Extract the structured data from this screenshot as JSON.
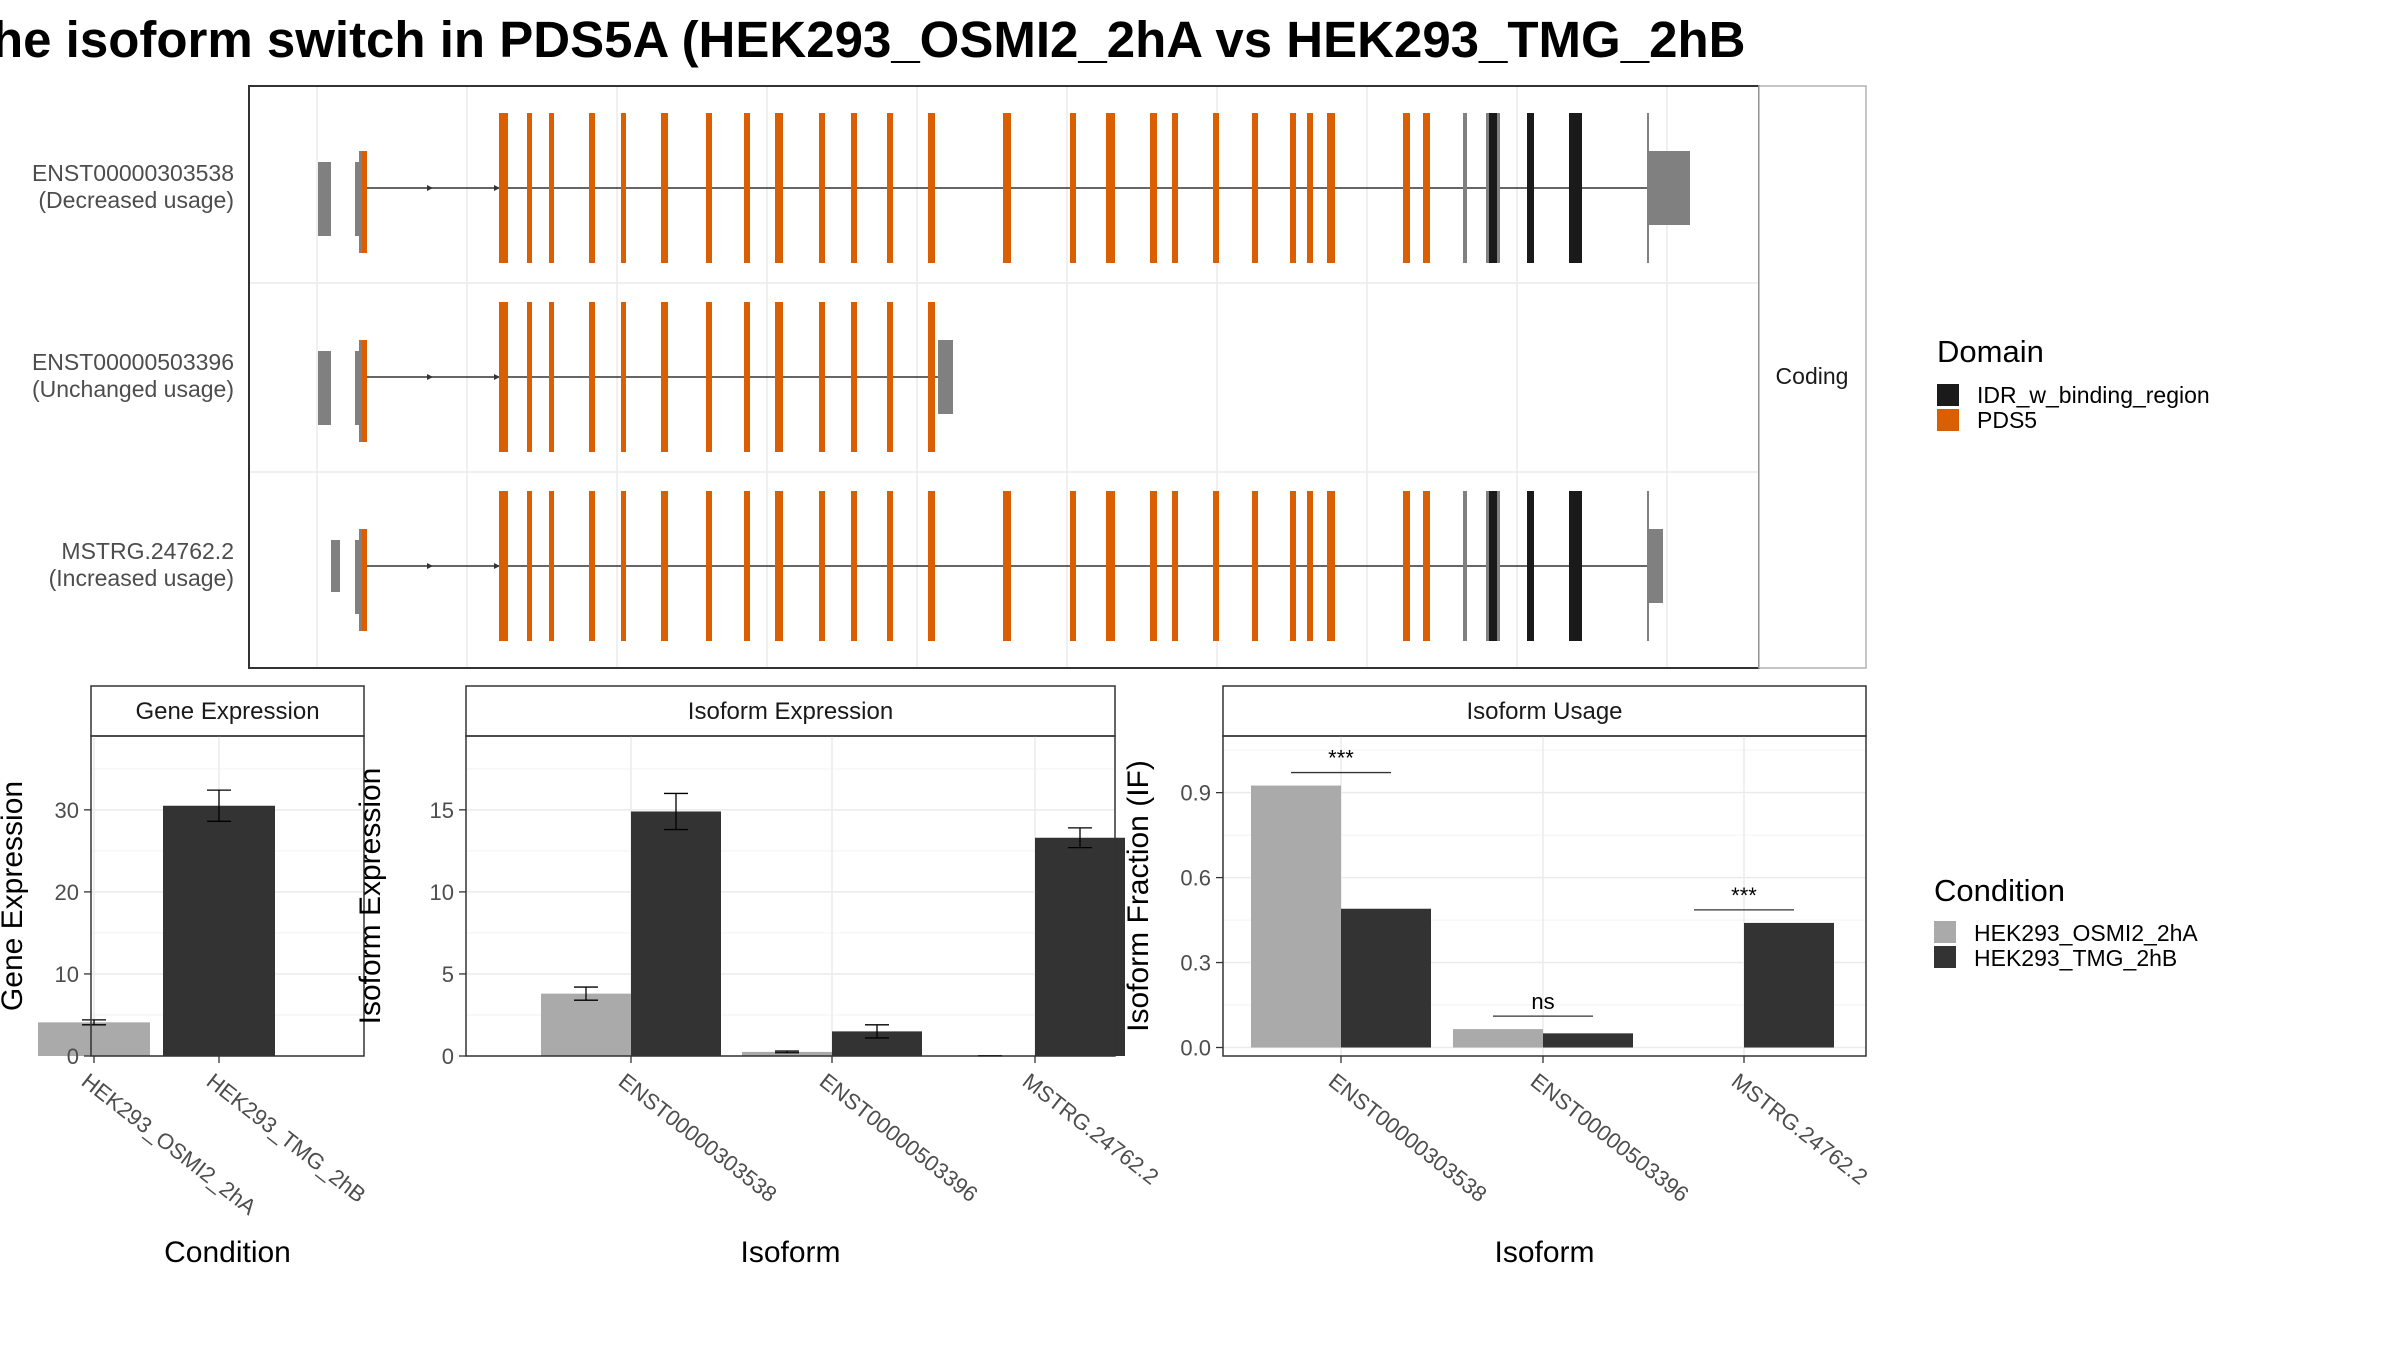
{
  "title": "he isoform switch in PDS5A (HEK293_OSMI2_2hA vs HEK293_TMG_2hB",
  "colors": {
    "PDS5": "#d95f02",
    "IDR_w_binding_region": "#1a1a1a",
    "noncoding": "#808080",
    "HEK293_OSMI2_2hA": "#aaaaaa",
    "HEK293_TMG_2hB": "#333333"
  },
  "structure": {
    "strip_label": "Coding",
    "transcripts": [
      {
        "id": "ENST00000303538",
        "usage": "(Decreased usage)",
        "type": "full"
      },
      {
        "id": "ENST00000503396",
        "usage": "(Unchanged usage)",
        "type": "truncated"
      },
      {
        "id": "MSTRG.24762.2",
        "usage": "(Increased usage)",
        "type": "full_alt"
      }
    ],
    "legend_title": "Domain",
    "legend_items": [
      "IDR_w_binding_region",
      "PDS5"
    ]
  },
  "chart_data": [
    {
      "type": "bar",
      "panel": "Gene Expression",
      "categories": [
        "HEK293_OSMI2_2hA",
        "HEK293_TMG_2hB"
      ],
      "values": [
        4.1,
        30.5
      ],
      "errors": [
        0.3,
        1.9
      ],
      "ylabel": "Gene Expression",
      "xlabel": "Condition",
      "ylim": [
        0,
        39
      ],
      "yticks": [
        0,
        10,
        20,
        30
      ]
    },
    {
      "type": "bar",
      "panel": "Isoform Expression",
      "categories": [
        "ENST00000303538",
        "ENST00000503396",
        "MSTRG.24762.2"
      ],
      "series": [
        {
          "name": "HEK293_OSMI2_2hA",
          "values": [
            3.8,
            0.25,
            0.0
          ],
          "errors": [
            0.4,
            0.05,
            0.02
          ]
        },
        {
          "name": "HEK293_TMG_2hB",
          "values": [
            14.9,
            1.5,
            13.3
          ],
          "errors": [
            1.1,
            0.4,
            0.6
          ]
        }
      ],
      "ylabel": "Isoform Expression",
      "xlabel": "Isoform",
      "ylim": [
        0,
        19.5
      ],
      "yticks": [
        0,
        5,
        10,
        15
      ]
    },
    {
      "type": "bar",
      "panel": "Isoform Usage",
      "categories": [
        "ENST00000303538",
        "ENST00000503396",
        "MSTRG.24762.2"
      ],
      "series": [
        {
          "name": "HEK293_OSMI2_2hA",
          "values": [
            0.925,
            0.065,
            0.0
          ]
        },
        {
          "name": "HEK293_TMG_2hB",
          "values": [
            0.49,
            0.05,
            0.44
          ]
        }
      ],
      "significance": [
        "***",
        "ns",
        "***"
      ],
      "ylabel": "Isoform Fraction (IF)",
      "xlabel": "Isoform",
      "ylim": [
        -0.03,
        1.1
      ],
      "yticks": [
        "0.0",
        "0.3",
        "0.6",
        "0.9"
      ]
    }
  ],
  "condition_legend": {
    "title": "Condition",
    "items": [
      "HEK293_OSMI2_2hA",
      "HEK293_TMG_2hB"
    ]
  }
}
